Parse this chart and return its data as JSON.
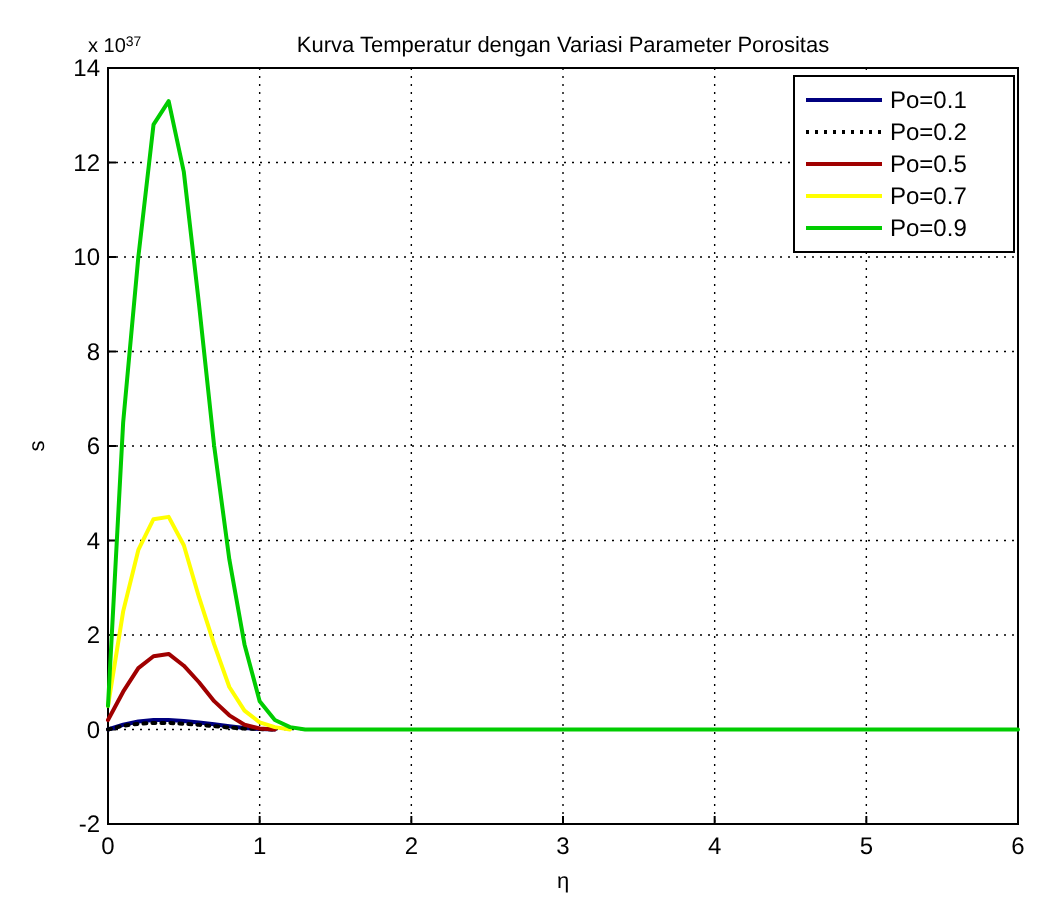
{
  "chart_data": {
    "type": "line",
    "title": "Kurva Temperatur dengan Variasi Parameter Porositas",
    "xlabel": "η",
    "ylabel": "s",
    "annotations": [
      "x 10$^{37}$"
    ],
    "x": [
      0,
      0.1,
      0.2,
      0.3,
      0.4,
      0.5,
      0.6,
      0.7,
      0.8,
      0.9,
      1.0,
      1.1,
      1.2,
      1.3,
      1.5,
      2,
      3,
      4,
      5,
      6
    ],
    "xlim": [
      0,
      6
    ],
    "ylim": [
      -2,
      14
    ],
    "xticks": [
      0,
      1,
      2,
      3,
      4,
      5,
      6
    ],
    "yticks": [
      -2,
      0,
      2,
      4,
      6,
      8,
      10,
      12,
      14
    ],
    "grid": true,
    "legend": "top right",
    "series": [
      {
        "name": "Po=0.1",
        "color": "#00007f",
        "values": [
          0,
          0.1,
          0.17,
          0.2,
          0.2,
          0.18,
          0.15,
          0.11,
          0.07,
          0.03,
          0.01,
          0,
          null,
          null,
          null,
          null,
          null,
          null,
          null,
          null
        ]
      },
      {
        "name": "Po=0.2",
        "color": "#000000",
        "line_style": "dotted",
        "values": [
          0,
          0.08,
          0.12,
          0.14,
          0.14,
          0.12,
          0.1,
          0.07,
          0.04,
          0.02,
          0.01,
          0,
          null,
          null,
          null,
          null,
          null,
          null,
          null,
          null
        ]
      },
      {
        "name": "Po=0.5",
        "color": "#a00000",
        "values": [
          0.2,
          0.8,
          1.3,
          1.55,
          1.6,
          1.35,
          1.0,
          0.6,
          0.3,
          0.1,
          0.02,
          0,
          null,
          null,
          null,
          null,
          null,
          null,
          null,
          null
        ]
      },
      {
        "name": "Po=0.7",
        "color": "#ffff00",
        "values": [
          0.5,
          2.5,
          3.8,
          4.45,
          4.5,
          3.9,
          2.8,
          1.8,
          0.9,
          0.4,
          0.15,
          0.05,
          0,
          null,
          null,
          null,
          null,
          null,
          null,
          null
        ]
      },
      {
        "name": "Po=0.9",
        "color": "#00cc00",
        "values": [
          0.5,
          6.5,
          10,
          12.8,
          13.3,
          11.8,
          9,
          6,
          3.6,
          1.8,
          0.6,
          0.2,
          0.05,
          0,
          0,
          0,
          0,
          0,
          0,
          0
        ]
      }
    ]
  }
}
